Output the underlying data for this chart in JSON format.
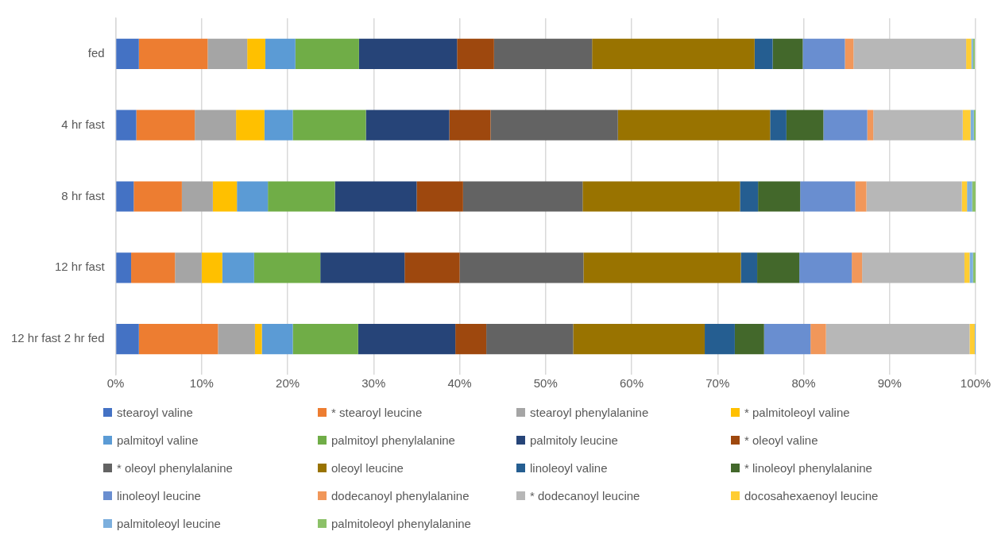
{
  "chart_data": {
    "type": "bar",
    "orientation": "horizontal",
    "stacked": true,
    "categories": [
      "fed",
      "4 hr fast",
      "8 hr fast",
      "12 hr fast",
      "12 hr fast 2 hr fed"
    ],
    "xlim": [
      0,
      100
    ],
    "xticks": [
      {
        "value": 0,
        "label": "0%"
      },
      {
        "value": 10,
        "label": "10%"
      },
      {
        "value": 20,
        "label": "20%"
      },
      {
        "value": 30,
        "label": "30%"
      },
      {
        "value": 40,
        "label": "40%"
      },
      {
        "value": 50,
        "label": "50%"
      },
      {
        "value": 60,
        "label": "60%"
      },
      {
        "value": 70,
        "label": "70%"
      },
      {
        "value": 80,
        "label": "80%"
      },
      {
        "value": 90,
        "label": "90%"
      },
      {
        "value": 100,
        "label": "100%"
      }
    ],
    "grid": "x",
    "legend": "bottom",
    "series": [
      {
        "name": "stearoyl valine",
        "color": "#4472c4",
        "values": [
          2.7,
          2.4,
          2.1,
          1.8,
          2.7
        ]
      },
      {
        "name": "* stearoyl leucine",
        "color": "#ed7d31",
        "values": [
          8.0,
          6.8,
          5.6,
          5.1,
          9.2
        ]
      },
      {
        "name": "stearoyl phenylalanine",
        "color": "#a5a5a5",
        "values": [
          4.6,
          4.8,
          3.6,
          3.1,
          4.3
        ]
      },
      {
        "name": "* palmitoleoyl valine",
        "color": "#ffc000",
        "values": [
          2.1,
          3.3,
          2.8,
          2.4,
          0.8
        ]
      },
      {
        "name": "palmitoyl valine",
        "color": "#5b9bd5",
        "values": [
          3.5,
          3.3,
          3.6,
          3.7,
          3.6
        ]
      },
      {
        "name": "palmitoyl phenylalanine",
        "color": "#70ad47",
        "values": [
          7.4,
          8.5,
          7.8,
          7.7,
          7.6
        ]
      },
      {
        "name": "palmitoly leucine",
        "color": "#264478",
        "values": [
          11.4,
          9.7,
          9.5,
          9.8,
          11.3
        ]
      },
      {
        "name": "* oleoyl valine",
        "color": "#9e480e",
        "values": [
          4.3,
          4.8,
          5.4,
          6.4,
          3.6
        ]
      },
      {
        "name": "* oleoyl phenylalanine",
        "color": "#636363",
        "values": [
          11.4,
          14.8,
          13.9,
          14.4,
          10.1
        ]
      },
      {
        "name": "oleoyl leucine",
        "color": "#997300",
        "values": [
          18.9,
          17.7,
          18.3,
          18.3,
          15.3
        ]
      },
      {
        "name": "linoleoyl valine",
        "color": "#255e91",
        "values": [
          2.1,
          1.9,
          2.1,
          1.9,
          3.5
        ]
      },
      {
        "name": "* linoleoyl phenylalanine",
        "color": "#43682b",
        "values": [
          3.5,
          4.3,
          4.9,
          4.9,
          3.4
        ]
      },
      {
        "name": "linoleoyl leucine",
        "color": "#698ed0",
        "values": [
          4.9,
          5.1,
          6.4,
          6.1,
          5.4
        ]
      },
      {
        "name": "dodecanoyl phenylalanine",
        "color": "#f1975a",
        "values": [
          1.0,
          0.7,
          1.3,
          1.2,
          1.8
        ]
      },
      {
        "name": "* dodecanoyl leucine",
        "color": "#b7b7b7",
        "values": [
          13.1,
          10.4,
          11.1,
          11.9,
          16.7
        ]
      },
      {
        "name": "docosahexaenoyl leucine",
        "color": "#ffcd33",
        "values": [
          0.6,
          0.9,
          0.6,
          0.6,
          0.6
        ]
      },
      {
        "name": "palmitoleoyl leucine",
        "color": "#7cafdd",
        "values": [
          0.2,
          0.4,
          0.6,
          0.4,
          0.1
        ]
      },
      {
        "name": "palmitoleoyl phenylalanine",
        "color": "#8cc168",
        "values": [
          0.2,
          0.2,
          0.4,
          0.3,
          0
        ]
      }
    ]
  }
}
